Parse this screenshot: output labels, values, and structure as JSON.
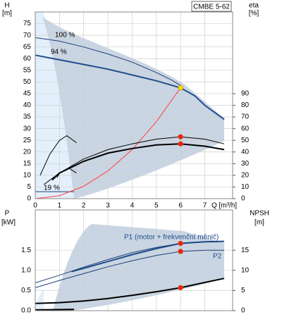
{
  "chart_data": [
    {
      "type": "line",
      "model": "CMBE 5-62",
      "ylabel": "H",
      "yunit": "[m]",
      "y2label": "eta",
      "y2unit": "[%]",
      "xlabel": "Q [m³/h]",
      "xlim": [
        0,
        8.15
      ],
      "xticks": [
        0,
        1,
        2,
        3,
        4,
        5,
        6,
        7
      ],
      "ylim": [
        0,
        80
      ],
      "yticks": [
        0,
        5,
        10,
        15,
        20,
        25,
        30,
        35,
        40,
        45,
        50,
        55,
        60,
        65,
        70,
        75
      ],
      "y2lim": [
        0,
        160
      ],
      "y2ticks": [
        0,
        10,
        20,
        30,
        40,
        50,
        60,
        70,
        80,
        90
      ],
      "grid": true,
      "series": [
        {
          "name": "100 %",
          "color": "#1f3f78",
          "width": 1,
          "axis": "y",
          "x": [
            0,
            1,
            2,
            3,
            4,
            5,
            5.6,
            6
          ],
          "values": [
            69,
            67.5,
            65,
            62,
            58.5,
            54,
            51,
            48.5
          ]
        },
        {
          "name": "94 %",
          "color": "#1f4e8c",
          "width": 2,
          "axis": "y",
          "x": [
            0,
            1,
            2,
            3,
            4,
            5,
            6,
            6.6,
            7,
            7.8
          ],
          "values": [
            61.5,
            59.5,
            57.5,
            55.5,
            53,
            50.5,
            47.5,
            44,
            40,
            34
          ]
        },
        {
          "name": "19 %",
          "color": "#1f3f78",
          "width": 1,
          "axis": "y",
          "x": [
            0,
            1.6
          ],
          "values": [
            3,
            3
          ]
        },
        {
          "color": "#ff4040",
          "width": 1,
          "axis": "y",
          "x": [
            0,
            1,
            2,
            3,
            4,
            5,
            6
          ],
          "values": [
            0,
            1.3,
            5.3,
            11.9,
            21,
            33,
            47.5
          ]
        },
        {
          "color": "#000000",
          "width": 2,
          "axis": "y2",
          "x": [
            0.7,
            1,
            2,
            3,
            4,
            5,
            6,
            7,
            7.8
          ],
          "values": [
            16,
            22,
            32,
            39,
            43,
            46,
            47,
            45,
            42
          ]
        },
        {
          "color": "#000000",
          "width": 1,
          "axis": "y2",
          "x": [
            0.9,
            1,
            2,
            3,
            4,
            5,
            6,
            7,
            7.8
          ],
          "values": [
            18,
            22,
            34,
            42,
            47,
            51,
            53,
            51,
            47
          ]
        },
        {
          "color": "#000000",
          "width": 1,
          "axis": "y",
          "x": [
            0.2,
            0.6,
            1,
            1.3,
            1.7
          ],
          "values": [
            10,
            19,
            25,
            27,
            24
          ]
        },
        {
          "color": "#000000",
          "width": 1,
          "axis": "y",
          "x": [
            0.35,
            1,
            1.4,
            1.7
          ],
          "values": [
            6,
            11,
            13,
            11
          ]
        }
      ],
      "points": [
        {
          "x": 6,
          "y": 47.5,
          "axis": "y",
          "color": "#ffd700"
        },
        {
          "x": 6,
          "y": 53,
          "axis": "y2",
          "color": "#ff1a1a"
        },
        {
          "x": 6,
          "y": 47,
          "axis": "y2",
          "color": "#ff1a1a"
        }
      ]
    },
    {
      "type": "line",
      "ylabel": "P",
      "yunit": "[kW]",
      "y2label": "NPSH",
      "y2unit": "[m]",
      "xlim": [
        0,
        8.15
      ],
      "ylim": [
        0,
        2.5
      ],
      "yticks": [
        {
          "value": 0,
          "label": "0.0"
        },
        0.5,
        {
          "value": 1,
          "label": "1.0"
        },
        1.5
      ],
      "y2lim": [
        0,
        25
      ],
      "y2ticks": [
        0,
        5,
        10,
        15
      ],
      "grid": true,
      "series": [
        {
          "name": "P1 (motor + frekvenční měnič)",
          "color": "#1f4e8c",
          "width": 2,
          "axis": "y",
          "x": [
            1.5,
            2,
            3,
            4,
            5,
            6,
            7,
            7.8
          ],
          "values": [
            0.97,
            1.05,
            1.22,
            1.39,
            1.54,
            1.67,
            1.71,
            1.72
          ]
        },
        {
          "color": "#1f3f78",
          "width": 1,
          "axis": "y",
          "x": [
            0,
            1,
            2,
            3,
            4,
            5,
            6,
            7,
            7.8
          ],
          "values": [
            0.69,
            0.88,
            1.08,
            1.27,
            1.44,
            1.57,
            1.67,
            1.71,
            1.72
          ]
        },
        {
          "name": "P2",
          "color": "#1f3f78",
          "width": 1,
          "axis": "y",
          "x": [
            0,
            1,
            2,
            3,
            4,
            5,
            6,
            7,
            7.8
          ],
          "values": [
            0.57,
            0.75,
            0.92,
            1.09,
            1.24,
            1.37,
            1.47,
            1.5,
            1.5
          ]
        },
        {
          "color": "#000000",
          "width": 2,
          "axis": "y2",
          "x": [
            0,
            1,
            2,
            3,
            4,
            5,
            6,
            7,
            7.8
          ],
          "values": [
            1.8,
            2,
            2.4,
            3,
            3.8,
            4.7,
            5.7,
            7,
            8
          ]
        },
        {
          "color": "#000000",
          "width": 2,
          "axis": "y",
          "x": [
            0,
            1.6
          ],
          "values": [
            0.02,
            0.03
          ]
        }
      ],
      "points": [
        {
          "x": 6,
          "y": 1.67,
          "axis": "y",
          "color": "#ff1a1a"
        },
        {
          "x": 6,
          "y": 1.47,
          "axis": "y",
          "color": "#ff1a1a"
        },
        {
          "x": 6,
          "y": 5.7,
          "axis": "y2",
          "color": "#ff1a1a"
        }
      ]
    }
  ]
}
